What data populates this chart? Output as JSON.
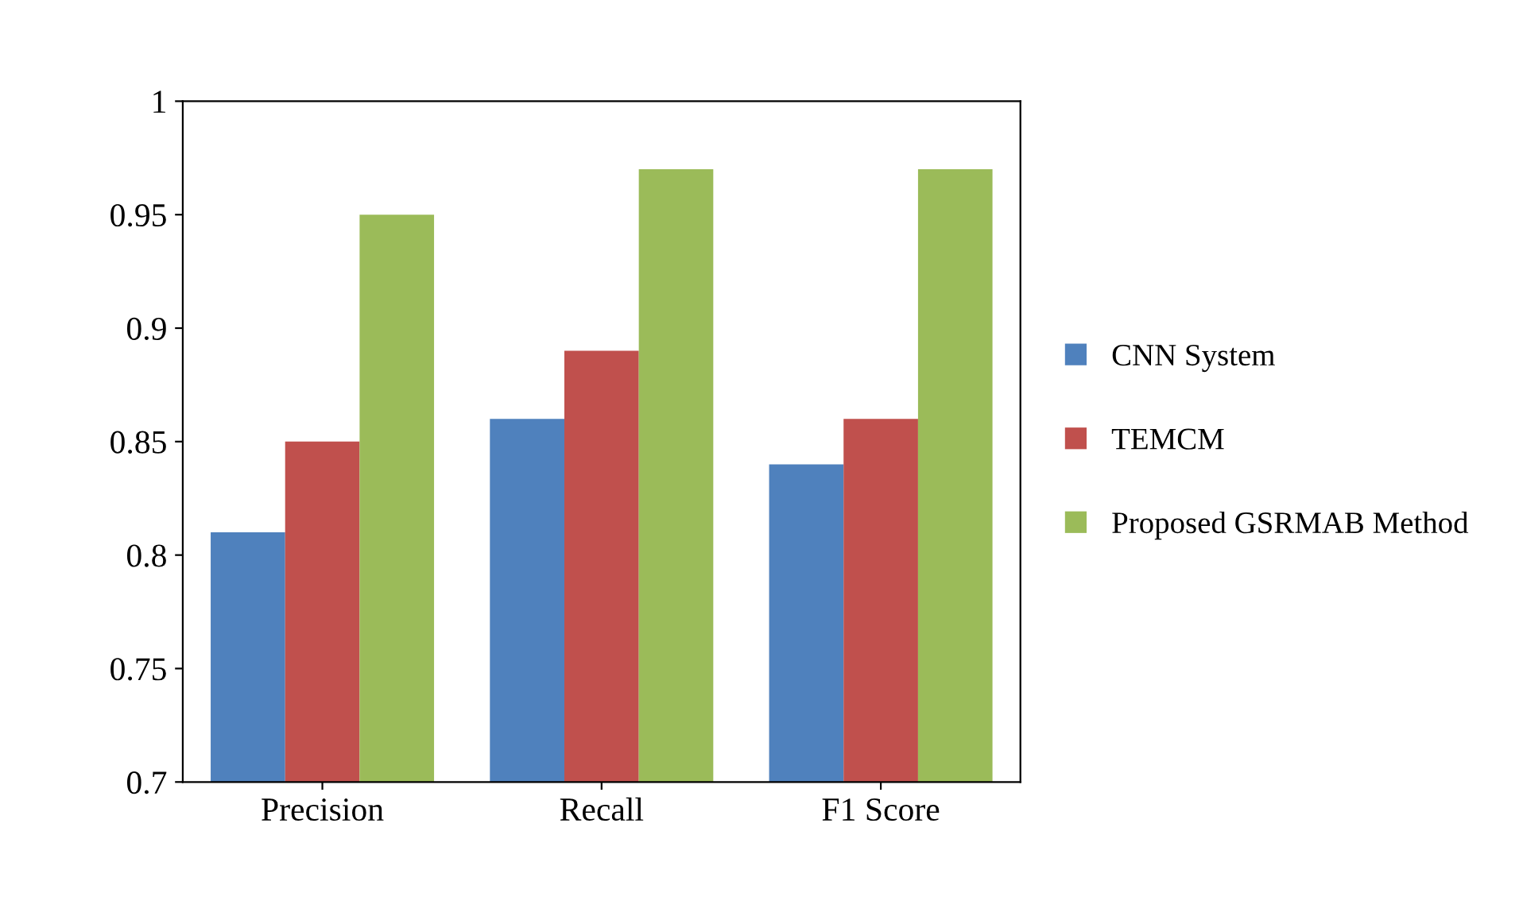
{
  "chart_data": {
    "type": "bar",
    "categories": [
      "Precision",
      "Recall",
      "F1 Score"
    ],
    "series": [
      {
        "name": "CNN System",
        "color": "#4f81bd",
        "values": [
          0.81,
          0.86,
          0.84
        ]
      },
      {
        "name": "TEMCM",
        "color": "#c0504d",
        "values": [
          0.85,
          0.89,
          0.86
        ]
      },
      {
        "name": "Proposed GSRMAB Method",
        "color": "#9bbb59",
        "values": [
          0.95,
          0.97,
          0.97
        ]
      }
    ],
    "ylim": [
      0.7,
      1
    ],
    "yticks": [
      0.7,
      0.75,
      0.8,
      0.85,
      0.9,
      0.95,
      1
    ],
    "grid": false,
    "legend": "right"
  }
}
